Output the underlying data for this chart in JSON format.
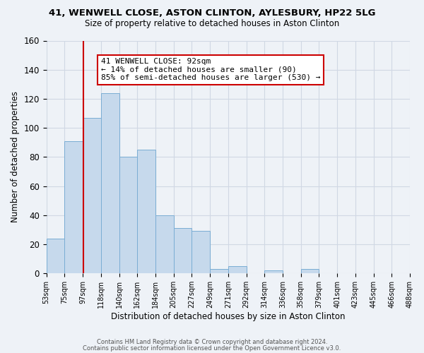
{
  "title1": "41, WENWELL CLOSE, ASTON CLINTON, AYLESBURY, HP22 5LG",
  "title2": "Size of property relative to detached houses in Aston Clinton",
  "xlabel": "Distribution of detached houses by size in Aston Clinton",
  "ylabel": "Number of detached properties",
  "bar_heights": [
    24,
    91,
    107,
    124,
    80,
    85,
    40,
    31,
    29,
    3,
    5,
    0,
    2,
    0,
    3,
    0,
    0,
    0,
    0,
    0
  ],
  "bar_color": "#c6d9ec",
  "bar_edge_color": "#7aadd4",
  "vline_index": 2.05,
  "vline_color": "#cc0000",
  "ylim": [
    0,
    160
  ],
  "annotation_text": "41 WENWELL CLOSE: 92sqm\n← 14% of detached houses are smaller (90)\n85% of semi-detached houses are larger (530) →",
  "annotation_box_color": "#ffffff",
  "annotation_box_edge": "#cc0000",
  "footer1": "Contains HM Land Registry data © Crown copyright and database right 2024.",
  "footer2": "Contains public sector information licensed under the Open Government Licence v3.0.",
  "tick_labels": [
    "53sqm",
    "75sqm",
    "97sqm",
    "118sqm",
    "140sqm",
    "162sqm",
    "184sqm",
    "205sqm",
    "227sqm",
    "249sqm",
    "271sqm",
    "292sqm",
    "314sqm",
    "336sqm",
    "358sqm",
    "379sqm",
    "401sqm",
    "423sqm",
    "445sqm",
    "466sqm",
    "488sqm"
  ],
  "background_color": "#eef2f7",
  "grid_color": "#d0d8e4",
  "n_bars": 20
}
